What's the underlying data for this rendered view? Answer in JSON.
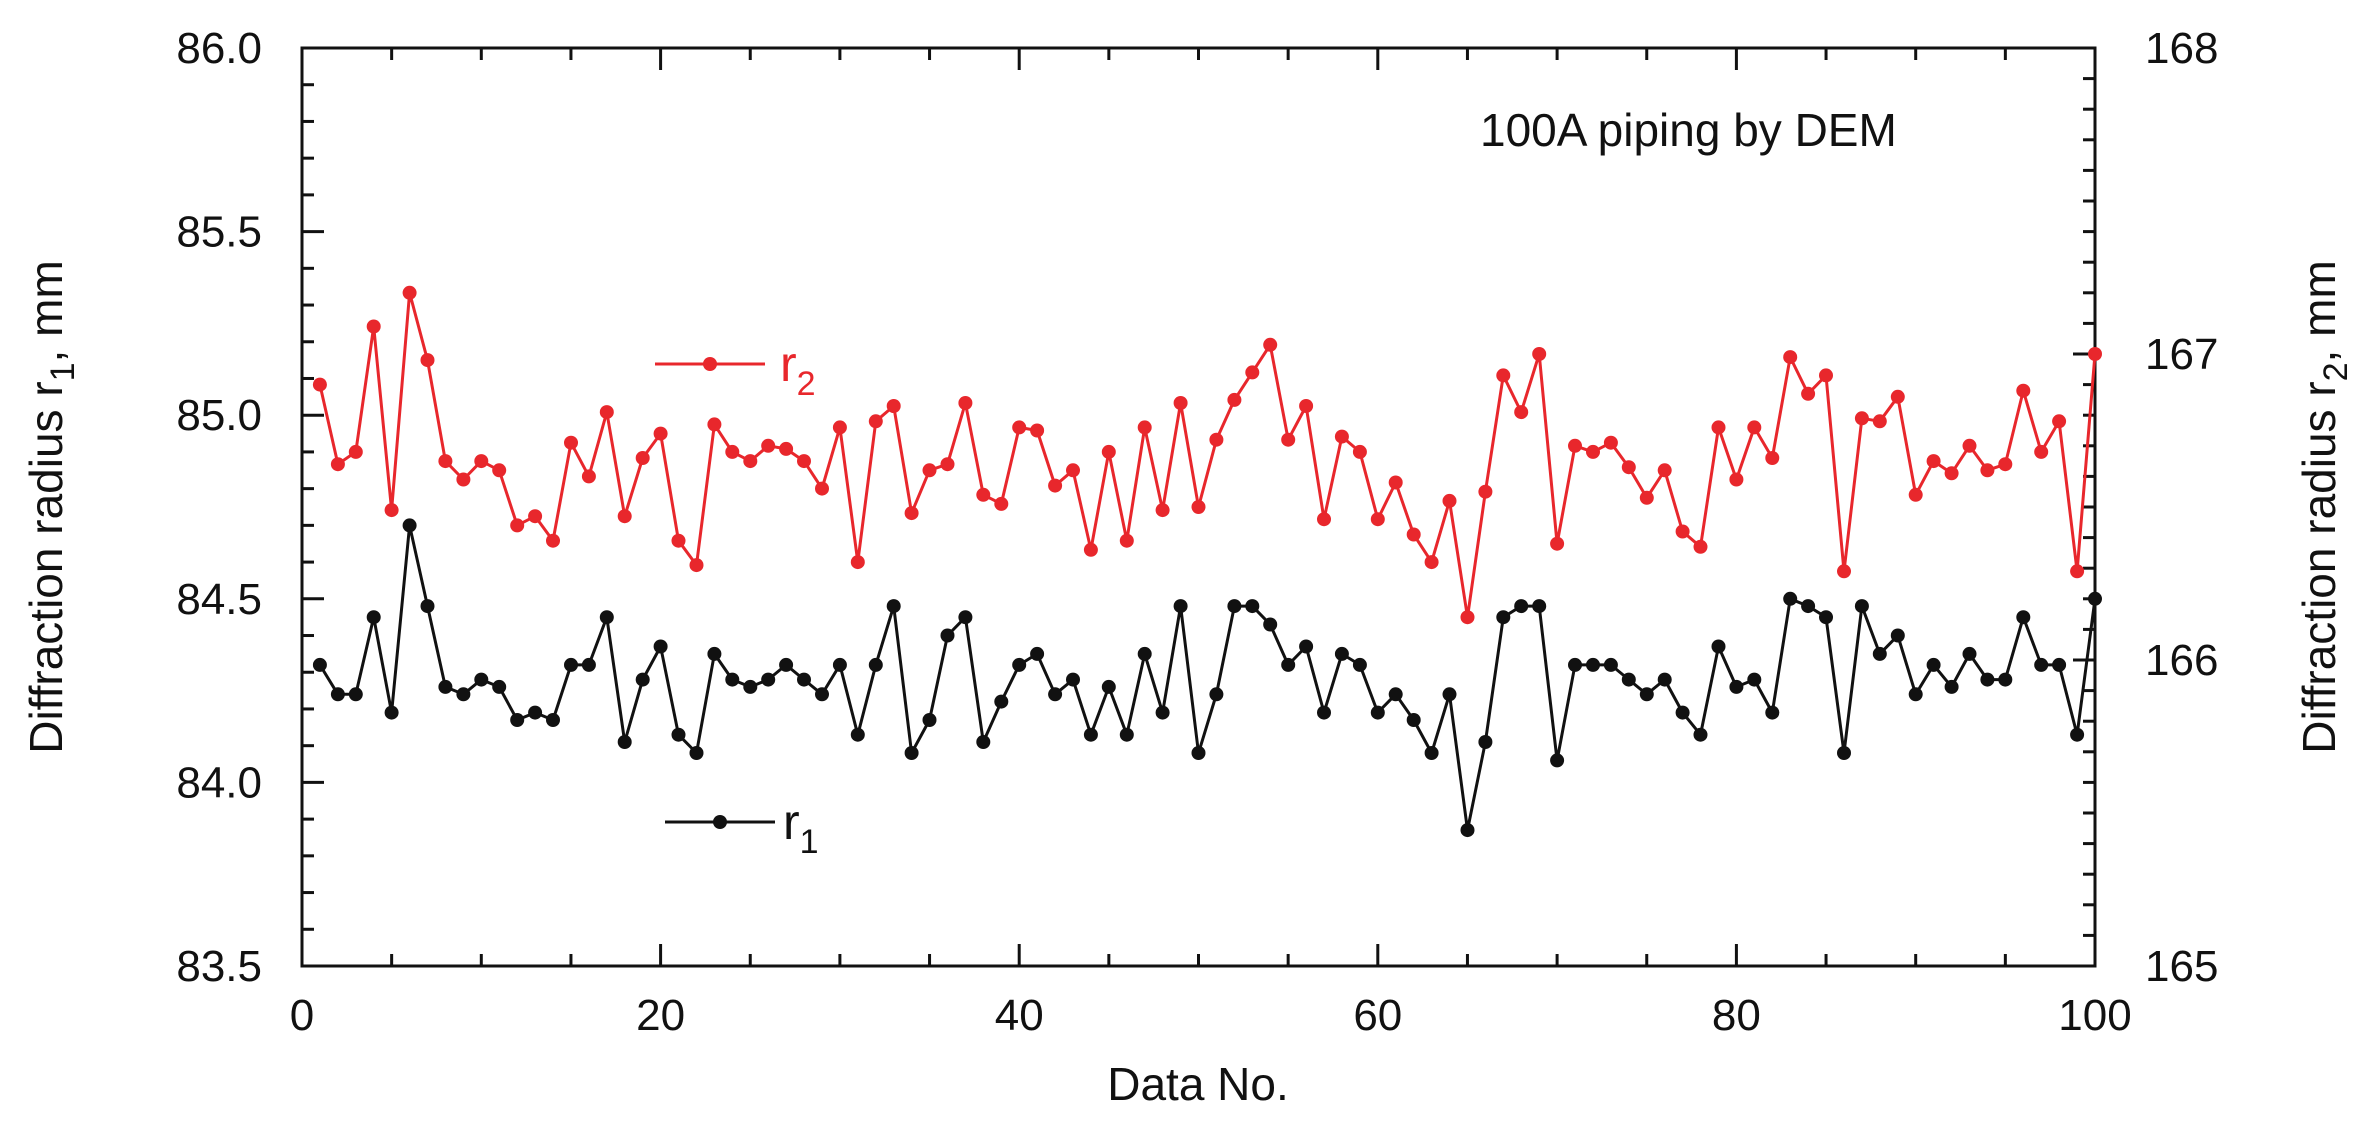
{
  "chart_data": {
    "type": "line",
    "annotation": "100A piping by DEM",
    "xlabel": "Data No.",
    "xlim": [
      0,
      100
    ],
    "xticks": [
      "0",
      "20",
      "40",
      "60",
      "80",
      "100"
    ],
    "ylabel_left": {
      "text": "Diffraction radius r",
      "sub": "1",
      "suffix": ", mm"
    },
    "ylabel_right": {
      "text": "Diffraction radius r",
      "sub": "2",
      "suffix": ", mm"
    },
    "ylim_left": [
      83.5,
      86.0
    ],
    "ylim_right": [
      165,
      168
    ],
    "yticks_left": [
      "83.5",
      "84.0",
      "84.5",
      "85.0",
      "85.5",
      "86.0"
    ],
    "yticks_right": [
      "165",
      "166",
      "167",
      "168"
    ],
    "series": [
      {
        "name": "r1",
        "legend_main": "r",
        "legend_sub": "1",
        "axis": "left",
        "color": "#111111",
        "x": [
          1,
          2,
          3,
          4,
          5,
          6,
          7,
          8,
          9,
          10,
          11,
          12,
          13,
          14,
          15,
          16,
          17,
          18,
          19,
          20,
          21,
          22,
          23,
          24,
          25,
          26,
          27,
          28,
          29,
          30,
          31,
          32,
          33,
          34,
          35,
          36,
          37,
          38,
          39,
          40,
          41,
          42,
          43,
          44,
          45,
          46,
          47,
          48,
          49,
          50,
          51,
          52,
          53,
          54,
          55,
          56,
          57,
          58,
          59,
          60,
          61,
          62,
          63,
          64,
          65,
          66,
          67,
          68,
          69,
          70,
          71,
          72,
          73,
          74,
          75,
          76,
          77,
          78,
          79,
          80,
          81,
          82,
          83,
          84,
          85,
          86,
          87,
          88,
          89,
          90,
          91,
          92,
          93,
          94,
          95,
          96,
          97,
          98,
          99,
          100
        ],
        "values": [
          84.32,
          84.24,
          84.24,
          84.45,
          84.19,
          84.7,
          84.48,
          84.26,
          84.24,
          84.28,
          84.26,
          84.17,
          84.19,
          84.17,
          84.32,
          84.32,
          84.45,
          84.11,
          84.28,
          84.37,
          84.13,
          84.08,
          84.35,
          84.28,
          84.26,
          84.28,
          84.32,
          84.28,
          84.24,
          84.32,
          84.13,
          84.32,
          84.48,
          84.08,
          84.17,
          84.4,
          84.45,
          84.11,
          84.22,
          84.32,
          84.35,
          84.24,
          84.28,
          84.13,
          84.26,
          84.13,
          84.35,
          84.19,
          84.48,
          84.08,
          84.24,
          84.48,
          84.48,
          84.43,
          84.32,
          84.37,
          84.19,
          84.35,
          84.32,
          84.19,
          84.24,
          84.17,
          84.08,
          84.24,
          83.87,
          84.11,
          84.45,
          84.48,
          84.48,
          84.06,
          84.32,
          84.32,
          84.32,
          84.28,
          84.24,
          84.28,
          84.19,
          84.13,
          84.37,
          84.26,
          84.28,
          84.19,
          84.5,
          84.48,
          84.45,
          84.08,
          84.48,
          84.35,
          84.4,
          84.24,
          84.32,
          84.26,
          84.35,
          84.28,
          84.28,
          84.45,
          84.32,
          84.32,
          84.13,
          84.5
        ]
      },
      {
        "name": "r2",
        "legend_main": "r",
        "legend_sub": "2",
        "axis": "right",
        "color": "#e8272c",
        "x": [
          1,
          2,
          3,
          4,
          5,
          6,
          7,
          8,
          9,
          10,
          11,
          12,
          13,
          14,
          15,
          16,
          17,
          18,
          19,
          20,
          21,
          22,
          23,
          24,
          25,
          26,
          27,
          28,
          29,
          30,
          31,
          32,
          33,
          34,
          35,
          36,
          37,
          38,
          39,
          40,
          41,
          42,
          43,
          44,
          45,
          46,
          47,
          48,
          49,
          50,
          51,
          52,
          53,
          54,
          55,
          56,
          57,
          58,
          59,
          60,
          61,
          62,
          63,
          64,
          65,
          66,
          67,
          68,
          69,
          70,
          71,
          72,
          73,
          74,
          75,
          76,
          77,
          78,
          79,
          80,
          81,
          82,
          83,
          84,
          85,
          86,
          87,
          88,
          89,
          90,
          91,
          92,
          93,
          94,
          95,
          96,
          97,
          98,
          99,
          100
        ],
        "values": [
          166.9,
          166.64,
          166.68,
          167.09,
          166.49,
          167.2,
          166.98,
          166.65,
          166.59,
          166.65,
          166.62,
          166.44,
          166.47,
          166.39,
          166.71,
          166.6,
          166.81,
          166.47,
          166.66,
          166.74,
          166.39,
          166.31,
          166.77,
          166.68,
          166.65,
          166.7,
          166.69,
          166.65,
          166.56,
          166.76,
          166.32,
          166.78,
          166.83,
          166.48,
          166.62,
          166.64,
          166.84,
          166.54,
          166.51,
          166.76,
          166.75,
          166.57,
          166.62,
          166.36,
          166.68,
          166.39,
          166.76,
          166.49,
          166.84,
          166.5,
          166.72,
          166.85,
          166.94,
          167.03,
          166.72,
          166.83,
          166.46,
          166.73,
          166.68,
          166.46,
          166.58,
          166.41,
          166.32,
          166.52,
          166.14,
          166.55,
          166.93,
          166.81,
          167.0,
          166.38,
          166.7,
          166.68,
          166.71,
          166.63,
          166.53,
          166.62,
          166.42,
          166.37,
          166.76,
          166.59,
          166.76,
          166.66,
          166.99,
          166.87,
          166.93,
          166.29,
          166.79,
          166.78,
          166.86,
          166.54,
          166.65,
          166.61,
          166.7,
          166.62,
          166.64,
          166.88,
          166.68,
          166.78,
          166.29,
          167.0
        ]
      }
    ]
  }
}
